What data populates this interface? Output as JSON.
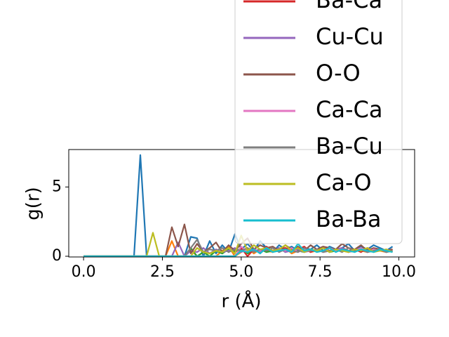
{
  "chart_data": {
    "type": "line",
    "xlabel": "r (Å)",
    "ylabel": "g(r)",
    "x": [
      0,
      0.2,
      0.4,
      0.6,
      0.8,
      1.0,
      1.2,
      1.4,
      1.6,
      1.8,
      2.0,
      2.2,
      2.4,
      2.6,
      2.8,
      3.0,
      3.2,
      3.4,
      3.6,
      3.8,
      4.0,
      4.2,
      4.4,
      4.6,
      4.8,
      5.0,
      5.2,
      5.4,
      5.6,
      5.8,
      6.0,
      6.2,
      6.4,
      6.6,
      6.8,
      7.0,
      7.2,
      7.4,
      7.6,
      7.8,
      8.0,
      8.2,
      8.4,
      8.6,
      8.8,
      9.0,
      9.2,
      9.4,
      9.6,
      9.8
    ],
    "series": [
      {
        "color": "#1f77b4",
        "values": [
          0,
          0,
          0,
          0,
          0,
          0,
          0,
          0,
          0,
          7.3,
          0,
          0,
          0,
          0,
          0,
          0,
          0,
          1.4,
          1.3,
          0,
          1.1,
          0.2,
          0.8,
          0.3,
          1.6,
          0.5,
          0.9,
          0.4,
          1.1,
          0.6,
          0.3,
          0.8,
          0.5,
          0.7,
          0.4,
          0.6,
          0.5,
          0.8,
          0.4,
          0.7,
          0.5,
          0.6,
          0.9,
          0.4,
          0.7,
          0.5,
          0.8,
          0.6,
          0.4,
          0.7
        ]
      },
      {
        "color": "#ff7f0e",
        "values": [
          0,
          0,
          0,
          0,
          0,
          0,
          0,
          0,
          0,
          0,
          0,
          0,
          0,
          0,
          1.1,
          0,
          0,
          0.5,
          0,
          0,
          0,
          0,
          0.4,
          0.7,
          0,
          0.3,
          0.6,
          0.2,
          0.5,
          0.4,
          0.3,
          0.5,
          0.6,
          0.2,
          0.4,
          0.5,
          0.3,
          0.4,
          0.6,
          0.3,
          0.5,
          0.4,
          0.3,
          0.5,
          0.4,
          0.3,
          0.5,
          0.4,
          0.3,
          0.5
        ]
      },
      {
        "color": "#2ca02c",
        "values": [
          0,
          0,
          0,
          0,
          0,
          0,
          0,
          0,
          0,
          0,
          0,
          0,
          0,
          0,
          0,
          0,
          0,
          0.6,
          0,
          0.3,
          0,
          0.4,
          0.2,
          0.5,
          0.3,
          0.6,
          0.2,
          0.4,
          0.5,
          0.3,
          0.4,
          0.6,
          0.3,
          0.5,
          0.4,
          0.3,
          0.5,
          0.4,
          0.6,
          0.3,
          0.4,
          0.5,
          0.3,
          0.4,
          0.5,
          0.3,
          0.4,
          0.5,
          0.3,
          0.4
        ]
      },
      {
        "name": "Ba-Ca",
        "color": "#d62728",
        "values": [
          0,
          0,
          0,
          0,
          0,
          0,
          0,
          0,
          0,
          0,
          0,
          0,
          0,
          0,
          0,
          0,
          0,
          0,
          0,
          0,
          0,
          0,
          0,
          0,
          0,
          0.6,
          0,
          0.5,
          0.3,
          0.7,
          0.4,
          0.5,
          0.6,
          0.4,
          0.5,
          0.7,
          0.3,
          0.5,
          0.6,
          0.4,
          0.5,
          0.6,
          0.4,
          0.5,
          0.3,
          0.6,
          0.4,
          0.5,
          0.4,
          0.5
        ]
      },
      {
        "name": "Cu-Cu",
        "color": "#9467bd",
        "values": [
          0,
          0,
          0,
          0,
          0,
          0,
          0,
          0,
          0,
          0,
          0,
          0,
          0,
          0,
          0,
          1.0,
          0,
          0.4,
          0.3,
          0.6,
          0.2,
          0.5,
          0.3,
          0.4,
          0.6,
          0.3,
          0.5,
          0.4,
          0.3,
          0.5,
          0.4,
          0.6,
          0.3,
          0.4,
          0.5,
          0.3,
          0.4,
          0.5,
          0.3,
          0.4,
          0.5,
          0.6,
          0.3,
          0.4,
          0.5,
          0.3,
          0.4,
          0.5,
          0.3,
          0.4
        ]
      },
      {
        "name": "O-O",
        "color": "#8c564b",
        "values": [
          0,
          0,
          0,
          0,
          0,
          0,
          0,
          0,
          0,
          0,
          0,
          0,
          0,
          0,
          2.1,
          0.7,
          2.3,
          0.2,
          0.9,
          0.3,
          0.6,
          1.0,
          0.3,
          0.8,
          0.4,
          0.9,
          1.3,
          0.5,
          0.8,
          0.6,
          0.7,
          0.4,
          0.8,
          0.5,
          0.7,
          0.4,
          0.8,
          0.5,
          0.7,
          0.6,
          0.5,
          0.9,
          0.6,
          0.5,
          0.8,
          0.4,
          0.6,
          0.5,
          0.4,
          0.5
        ]
      },
      {
        "name": "Ca-Ca",
        "color": "#e377c2",
        "values": [
          0,
          0,
          0,
          0,
          0,
          0,
          0,
          0,
          0,
          0,
          0,
          0,
          0,
          0,
          0,
          0,
          0,
          0,
          0,
          0,
          0,
          0,
          0,
          0,
          0,
          0.7,
          0.3,
          0.5,
          0.4,
          0.6,
          0.3,
          0.5,
          0.4,
          0.6,
          0.3,
          0.5,
          0.4,
          0.5,
          0.3,
          0.6,
          0.4,
          0.5,
          0.3,
          0.4,
          0.6,
          0.3,
          0.5,
          0.4,
          0.5,
          0.3
        ]
      },
      {
        "name": "Ba-Cu",
        "color": "#7f7f7f",
        "values": [
          0,
          0,
          0,
          0,
          0,
          0,
          0,
          0,
          0,
          0,
          0,
          0,
          0,
          0,
          0,
          0,
          0,
          0.6,
          1.2,
          0.3,
          0.5,
          0.4,
          0.6,
          0.3,
          0.5,
          0.4,
          0.6,
          0.3,
          0.5,
          0.4,
          0.6,
          0.3,
          0.5,
          0.4,
          0.3,
          0.6,
          0.4,
          0.5,
          0.3,
          0.4,
          0.5,
          0.3,
          0.6,
          0.4,
          0.5,
          0.3,
          0.4,
          0.5,
          0.3,
          0.4
        ]
      },
      {
        "name": "Ca-O",
        "color": "#bcbd22",
        "values": [
          0,
          0,
          0,
          0,
          0,
          0,
          0,
          0,
          0,
          0,
          0,
          1.7,
          0,
          0,
          0,
          0,
          0,
          0,
          0.6,
          0.3,
          0.2,
          0.4,
          0.3,
          0.6,
          0.2,
          1.5,
          0.4,
          0.8,
          0.5,
          0.6,
          0.4,
          0.5,
          0.8,
          0.4,
          0.6,
          0.3,
          0.5,
          0.4,
          0.6,
          0.3,
          0.5,
          0.4,
          0.3,
          0.5,
          0.4,
          0.6,
          0.3,
          0.4,
          0.5,
          0.3
        ]
      },
      {
        "name": "Ba-Ba",
        "color": "#17becf",
        "values": [
          0,
          0,
          0,
          0,
          0,
          0,
          0,
          0,
          0,
          0,
          0,
          0,
          0,
          0,
          0,
          0,
          0,
          0,
          0,
          0,
          0,
          0,
          0,
          0,
          0,
          0.4,
          0.3,
          0.5,
          0.2,
          0.6,
          0.3,
          0.4,
          0.5,
          0.3,
          0.9,
          0.4,
          0.5,
          0.3,
          0.4,
          0.6,
          0.3,
          0.5,
          0.4,
          0.3,
          0.5,
          0.4,
          0.3,
          0.5,
          0.4,
          0.3
        ]
      }
    ],
    "xlim": [
      -0.47,
      10.5
    ],
    "ylim": [
      -0.05,
      7.7
    ],
    "xticks": [
      {
        "value": 0,
        "label": "0.0"
      },
      2.5,
      {
        "value": 5,
        "label": "5.0"
      },
      7.5,
      {
        "value": 10,
        "label": "10.0"
      }
    ],
    "yticks": [
      0,
      5
    ],
    "legend": "upper right"
  }
}
